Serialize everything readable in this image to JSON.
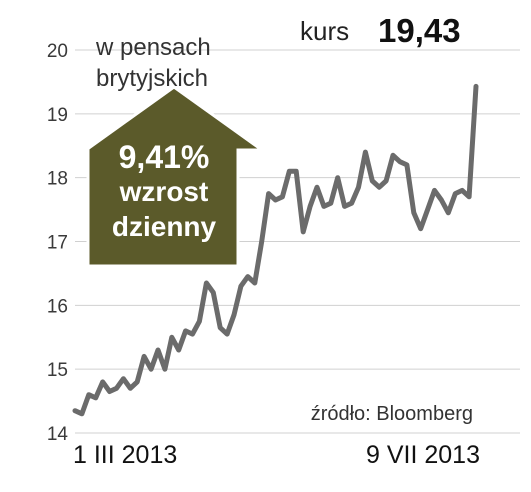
{
  "header": {
    "kurs_label": "kurs",
    "kurs_value": "19,43"
  },
  "unit_label": {
    "line1": "w pensach",
    "line2": "brytyjskich"
  },
  "badge": {
    "percent": "9,41%",
    "line1": "wzrost",
    "line2": "dzienny",
    "color": "#5b5a2a",
    "arrow": "up-arrow-icon"
  },
  "source": "źródło: Bloomberg",
  "dates": {
    "start": "1 III 2013",
    "end": "9 VII 2013"
  },
  "colors": {
    "line": "#6b6b6b",
    "grid": "#d0d0d0",
    "badge": "#5b5a2a",
    "badge_border": "#ffffff"
  },
  "chart_data": {
    "type": "line",
    "title": "",
    "xlabel": "",
    "ylabel": "w pensach brytyjskich",
    "ylim": [
      14,
      20
    ],
    "yticks": [
      14,
      15,
      16,
      17,
      18,
      19,
      20
    ],
    "x_range": [
      "1 III 2013",
      "9 VII 2013"
    ],
    "grid": true,
    "series": [
      {
        "values": [
          14.35,
          14.3,
          14.6,
          14.55,
          14.8,
          14.65,
          14.7,
          14.85,
          14.7,
          14.8,
          15.2,
          15.0,
          15.3,
          15.0,
          15.5,
          15.3,
          15.6,
          15.55,
          15.75,
          16.35,
          16.2,
          15.65,
          15.55,
          15.85,
          16.3,
          16.45,
          16.35,
          17.0,
          17.75,
          17.65,
          17.7,
          18.1,
          18.1,
          17.15,
          17.55,
          17.85,
          17.55,
          17.6,
          18.0,
          17.55,
          17.6,
          17.85,
          18.4,
          17.95,
          17.85,
          17.95,
          18.35,
          18.25,
          18.2,
          17.45,
          17.2,
          17.5,
          17.8,
          17.65,
          17.45,
          17.75,
          17.8,
          17.7,
          19.43
        ]
      }
    ]
  }
}
